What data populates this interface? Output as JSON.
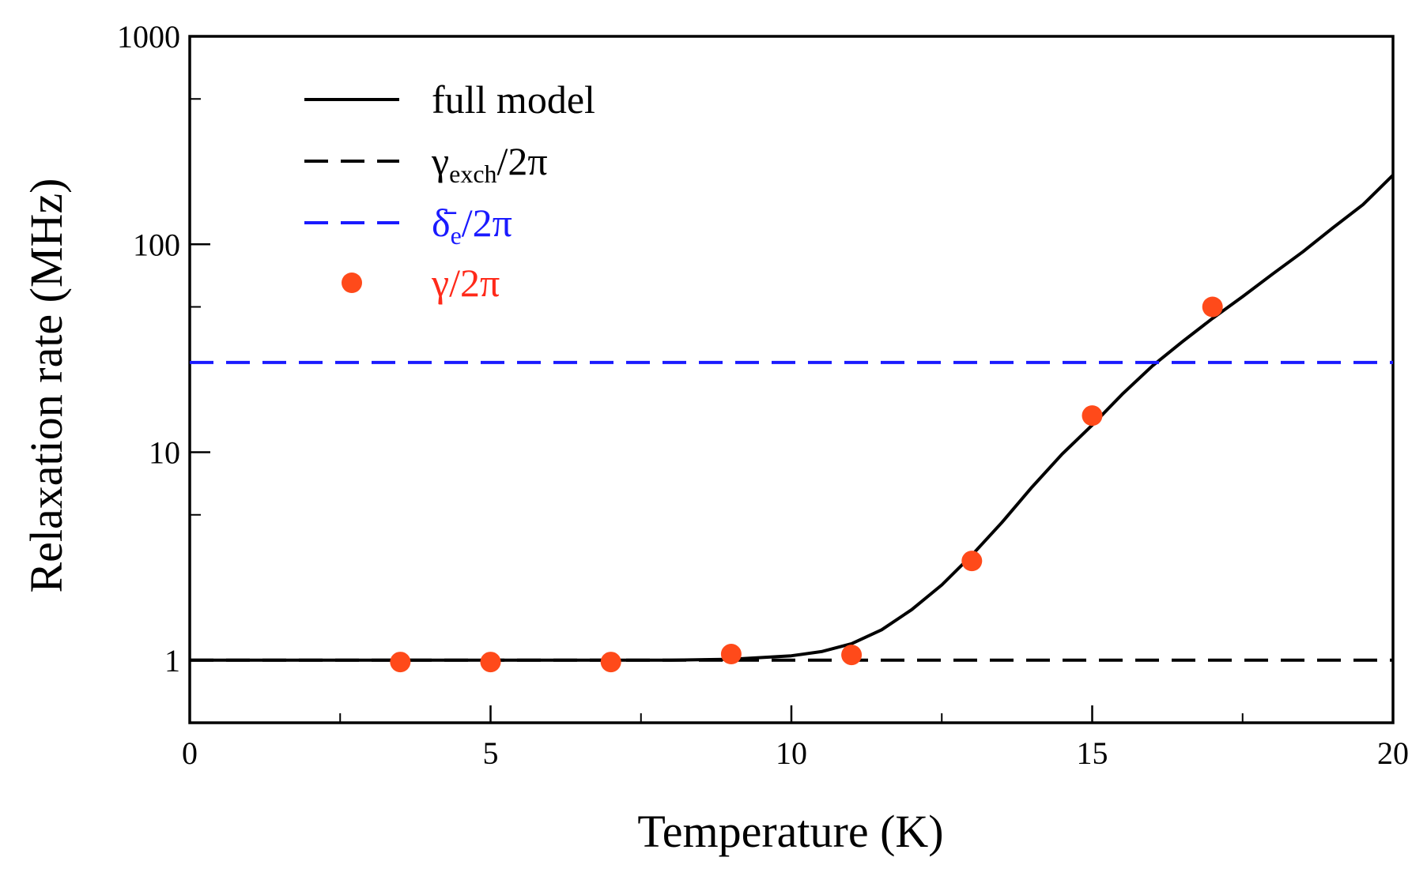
{
  "chart_data": {
    "type": "line",
    "title": "",
    "xlabel": "Temperature (K)",
    "ylabel": "Relaxation rate (MHz)",
    "xlim": [
      0,
      20
    ],
    "ylim": [
      0.5,
      1000
    ],
    "yscale": "log",
    "grid": false,
    "legend_position": "top-left",
    "x_ticks": [
      0,
      5,
      10,
      15,
      20
    ],
    "x_tick_labels": [
      "0",
      "5",
      "10",
      "15",
      "20"
    ],
    "y_ticks": [
      1,
      10,
      100,
      1000
    ],
    "y_tick_labels": [
      "1",
      "10",
      "100",
      "1000"
    ],
    "series": [
      {
        "name": "full model",
        "legend_label": "full model",
        "style": "solid",
        "color": "#000000",
        "x": [
          0,
          2,
          4,
          6,
          8,
          9,
          10,
          10.5,
          11,
          11.5,
          12,
          12.5,
          13,
          13.5,
          14,
          14.5,
          15,
          15.5,
          16,
          16.5,
          17,
          17.5,
          18,
          18.5,
          19,
          19.5,
          20
        ],
        "y": [
          1,
          1,
          1,
          1,
          1,
          1.01,
          1.05,
          1.1,
          1.2,
          1.4,
          1.75,
          2.3,
          3.2,
          4.6,
          6.8,
          9.8,
          13.5,
          19,
          26,
          34,
          44,
          56,
          72,
          92,
          120,
          155,
          215
        ]
      },
      {
        "name": "gamma_exch",
        "legend_label": "γ",
        "legend_sub": "exch",
        "legend_suffix": "/2π",
        "style": "dashed",
        "color": "#000000",
        "x": [
          0,
          20
        ],
        "y": [
          1,
          1
        ]
      },
      {
        "name": "delta_e",
        "legend_label": "δ̄",
        "legend_sub": "e",
        "legend_suffix": "/2π",
        "style": "dashed",
        "color": "#1a1aff",
        "x": [
          0,
          20
        ],
        "y": [
          27,
          27
        ]
      },
      {
        "name": "gamma",
        "legend_label": "γ/2π",
        "style": "markers",
        "color": "#ff4a1a",
        "x": [
          3.5,
          5,
          7,
          9,
          11,
          13,
          15,
          17
        ],
        "y": [
          0.98,
          0.98,
          0.98,
          1.07,
          1.06,
          3.0,
          15,
          50
        ]
      }
    ]
  }
}
